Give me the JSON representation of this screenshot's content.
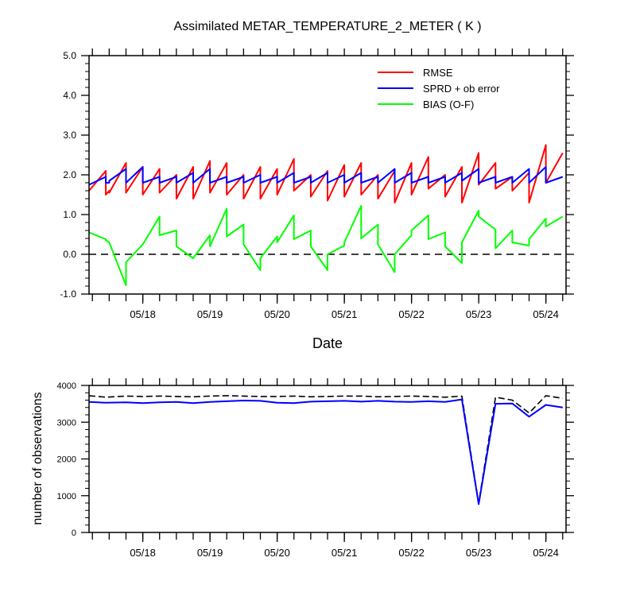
{
  "chart_data": [
    {
      "type": "line",
      "title": "Assimilated METAR_TEMPERATURE_2_METER ( K )",
      "xlabel": "Date",
      "ylabel": "",
      "x_range": [
        17.2,
        24.3
      ],
      "ylim": [
        -1.0,
        5.0
      ],
      "yticks": [
        -1.0,
        0.0,
        1.0,
        2.0,
        3.0,
        4.0,
        5.0
      ],
      "ytick_labels": [
        "-1.0",
        "0.0",
        "1.0",
        "2.0",
        "3.0",
        "4.0",
        "5.0"
      ],
      "xticks": [
        18,
        19,
        20,
        21,
        22,
        23,
        24
      ],
      "xtick_labels": [
        "05/18",
        "05/19",
        "05/20",
        "05/21",
        "05/22",
        "05/23",
        "05/24"
      ],
      "reference_line": {
        "y": 0.0,
        "style": "dashed",
        "color": "#000000"
      },
      "legend": {
        "position": "top-right",
        "entries": [
          "RMSE",
          "SPRD + ob error",
          "BIAS (O-F)"
        ]
      },
      "series": [
        {
          "name": "RMSE",
          "color": "#ff0000",
          "x": [
            17.2,
            17.45,
            17.45,
            17.5,
            17.5,
            17.75,
            17.75,
            18,
            18,
            18.25,
            18.25,
            18.5,
            18.5,
            18.75,
            18.75,
            19,
            19,
            19.25,
            19.25,
            19.5,
            19.5,
            19.75,
            19.75,
            20,
            20,
            20.25,
            20.25,
            20.5,
            20.5,
            20.75,
            20.75,
            21,
            21,
            21.25,
            21.25,
            21.5,
            21.5,
            21.75,
            21.75,
            22,
            22,
            22.25,
            22.25,
            22.5,
            22.5,
            22.75,
            22.75,
            23,
            23,
            23.25,
            23.25,
            23.5,
            23.5,
            23.75,
            23.75,
            24,
            24,
            24.25
          ],
          "y": [
            1.6,
            2.1,
            1.5,
            1.6,
            1.55,
            2.3,
            1.55,
            2.2,
            1.5,
            2.15,
            1.55,
            2.0,
            1.4,
            2.2,
            1.4,
            2.35,
            1.55,
            2.3,
            1.5,
            2.0,
            1.4,
            2.2,
            1.4,
            2.15,
            1.5,
            2.4,
            1.6,
            2.0,
            1.45,
            2.1,
            1.35,
            2.25,
            1.45,
            2.3,
            1.5,
            2.0,
            1.4,
            2.1,
            1.3,
            2.3,
            1.5,
            2.45,
            1.65,
            2.0,
            1.45,
            2.2,
            1.3,
            2.55,
            1.75,
            2.3,
            1.65,
            1.95,
            1.6,
            2.05,
            1.3,
            2.75,
            1.8,
            2.55
          ]
        },
        {
          "name": "SPRD + ob error",
          "color": "#0000ff",
          "x": [
            17.2,
            17.45,
            17.45,
            17.5,
            17.5,
            17.75,
            17.75,
            18,
            18,
            18.25,
            18.25,
            18.5,
            18.5,
            18.75,
            18.75,
            19,
            19,
            19.25,
            19.25,
            19.5,
            19.5,
            19.75,
            19.75,
            20,
            20,
            20.25,
            20.25,
            20.5,
            20.5,
            20.75,
            20.75,
            21,
            21,
            21.25,
            21.25,
            21.5,
            21.5,
            21.75,
            21.75,
            22,
            22,
            22.25,
            22.25,
            22.5,
            22.5,
            22.75,
            22.75,
            23,
            23,
            23.25,
            23.25,
            23.5,
            23.5,
            23.75,
            23.75,
            24,
            24,
            24.25
          ],
          "y": [
            1.75,
            1.95,
            1.8,
            1.8,
            1.85,
            2.15,
            1.8,
            2.2,
            1.8,
            1.95,
            1.8,
            1.95,
            1.8,
            2.05,
            1.8,
            2.15,
            1.8,
            1.95,
            1.8,
            1.95,
            1.8,
            2.0,
            1.8,
            1.95,
            1.8,
            2.05,
            1.8,
            1.95,
            1.8,
            2.05,
            1.8,
            2.0,
            1.8,
            2.05,
            1.8,
            1.95,
            1.8,
            2.15,
            1.8,
            2.05,
            1.8,
            1.95,
            1.8,
            1.95,
            1.8,
            2.05,
            1.85,
            2.15,
            1.8,
            1.95,
            1.8,
            1.95,
            1.8,
            2.15,
            1.8,
            2.2,
            1.8,
            1.95
          ]
        },
        {
          "name": "BIAS (O-F)",
          "color": "#00ff00",
          "x": [
            17.2,
            17.45,
            17.45,
            17.5,
            17.5,
            17.75,
            17.75,
            18,
            18,
            18.25,
            18.25,
            18.5,
            18.5,
            18.75,
            18.75,
            19,
            19,
            19.25,
            19.25,
            19.5,
            19.5,
            19.75,
            19.75,
            20,
            20,
            20.25,
            20.25,
            20.5,
            20.5,
            20.75,
            20.75,
            21,
            21,
            21.25,
            21.25,
            21.5,
            21.5,
            21.75,
            21.75,
            22,
            22,
            22.25,
            22.25,
            22.5,
            22.5,
            22.75,
            22.75,
            23,
            23,
            23.25,
            23.25,
            23.5,
            23.5,
            23.75,
            23.75,
            24,
            24,
            24.25
          ],
          "y": [
            0.55,
            0.38,
            0.35,
            0.3,
            0.3,
            -0.78,
            -0.2,
            0.25,
            0.25,
            0.95,
            0.48,
            0.6,
            0.2,
            -0.1,
            -0.1,
            0.48,
            0.2,
            1.15,
            0.45,
            0.75,
            0.25,
            -0.4,
            -0.1,
            0.45,
            0.3,
            0.98,
            0.38,
            0.6,
            0.2,
            -0.4,
            0.0,
            0.22,
            0.3,
            1.22,
            0.4,
            0.75,
            0.25,
            -0.45,
            0.0,
            0.48,
            0.6,
            0.98,
            0.38,
            0.55,
            0.2,
            -0.22,
            0.3,
            1.1,
            0.95,
            0.62,
            0.15,
            0.6,
            0.3,
            0.22,
            0.38,
            0.9,
            0.7,
            0.95
          ]
        }
      ]
    },
    {
      "type": "line",
      "title": "",
      "xlabel": "",
      "ylabel": "number of observations",
      "x_range": [
        17.2,
        24.3
      ],
      "ylim": [
        0,
        4000
      ],
      "yticks": [
        0,
        1000,
        2000,
        3000,
        4000
      ],
      "ytick_labels": [
        "0",
        "1000",
        "2000",
        "3000",
        "4000"
      ],
      "xticks": [
        18,
        19,
        20,
        21,
        22,
        23,
        24
      ],
      "xtick_labels": [
        "05/18",
        "05/19",
        "05/20",
        "05/21",
        "05/22",
        "05/23",
        "05/24"
      ],
      "series": [
        {
          "name": "",
          "color": "#000000",
          "style": "dashed",
          "x": [
            17.2,
            17.45,
            17.75,
            18,
            18.25,
            18.5,
            18.75,
            19,
            19.25,
            19.5,
            19.75,
            20,
            20.25,
            20.5,
            20.75,
            21,
            21.25,
            21.5,
            21.75,
            22,
            22.25,
            22.5,
            22.75,
            23,
            23.25,
            23.5,
            23.75,
            24,
            24.25
          ],
          "y": [
            3720,
            3680,
            3710,
            3700,
            3710,
            3700,
            3690,
            3710,
            3720,
            3710,
            3700,
            3700,
            3710,
            3690,
            3700,
            3710,
            3710,
            3690,
            3700,
            3710,
            3700,
            3680,
            3710,
            800,
            3680,
            3600,
            3250,
            3720,
            3650
          ]
        },
        {
          "name": "",
          "color": "#0000ff",
          "style": "solid",
          "x": [
            17.2,
            17.45,
            17.75,
            18,
            18.25,
            18.5,
            18.75,
            19,
            19.25,
            19.5,
            19.75,
            20,
            20.25,
            20.5,
            20.75,
            21,
            21.25,
            21.5,
            21.75,
            22,
            22.25,
            22.5,
            22.75,
            23,
            23.25,
            23.5,
            23.75,
            24,
            24.25
          ],
          "y": [
            3550,
            3530,
            3540,
            3520,
            3540,
            3550,
            3520,
            3550,
            3570,
            3590,
            3580,
            3530,
            3520,
            3560,
            3570,
            3580,
            3560,
            3580,
            3560,
            3550,
            3570,
            3550,
            3620,
            770,
            3500,
            3510,
            3150,
            3470,
            3400
          ]
        }
      ]
    }
  ]
}
